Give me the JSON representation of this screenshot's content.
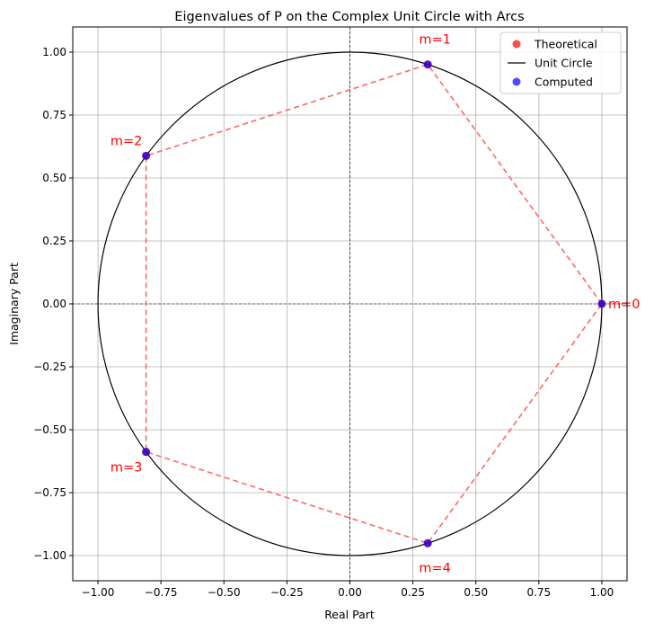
{
  "chart_data": {
    "type": "scatter",
    "title": "Eigenvalues of P on the Complex Unit Circle with Arcs",
    "xlabel": "Real Part",
    "ylabel": "Imaginary Part",
    "xlim": [
      -1.1,
      1.1
    ],
    "ylim": [
      -1.1,
      1.1
    ],
    "x_ticks": [
      -1.0,
      -0.75,
      -0.5,
      -0.25,
      0.0,
      0.25,
      0.5,
      0.75,
      1.0
    ],
    "y_ticks": [
      -1.0,
      -0.75,
      -0.5,
      -0.25,
      0.0,
      0.25,
      0.5,
      0.75,
      1.0
    ],
    "x_tick_labels": [
      "−1.00",
      "−0.75",
      "−0.50",
      "−0.25",
      "0.00",
      "0.25",
      "0.50",
      "0.75",
      "1.00"
    ],
    "y_tick_labels": [
      "−1.00",
      "−0.75",
      "−0.50",
      "−0.25",
      "0.00",
      "0.25",
      "0.50",
      "0.75",
      "1.00"
    ],
    "grid": true,
    "legend_position": "top-right",
    "series": [
      {
        "name": "Theoretical",
        "kind": "points",
        "color": "#ff0000",
        "points": [
          {
            "x": 1.0,
            "y": 0.0
          },
          {
            "x": 0.309,
            "y": 0.951
          },
          {
            "x": -0.809,
            "y": 0.588
          },
          {
            "x": -0.809,
            "y": -0.588
          },
          {
            "x": 0.309,
            "y": -0.951
          }
        ]
      },
      {
        "name": "Unit Circle",
        "kind": "circle",
        "color": "#000000",
        "center": [
          0,
          0
        ],
        "radius": 1
      },
      {
        "name": "Computed",
        "kind": "points",
        "color": "#0000ff",
        "points": [
          {
            "x": 1.0,
            "y": 0.0
          },
          {
            "x": 0.309,
            "y": 0.951
          },
          {
            "x": -0.809,
            "y": 0.588
          },
          {
            "x": -0.809,
            "y": -0.588
          },
          {
            "x": 0.309,
            "y": -0.951
          }
        ]
      }
    ],
    "arcs": {
      "color": "#ff6666",
      "style": "dashed",
      "path": [
        {
          "x": 1.0,
          "y": 0.0
        },
        {
          "x": 0.309,
          "y": 0.951
        },
        {
          "x": -0.809,
          "y": 0.588
        },
        {
          "x": -0.809,
          "y": -0.588
        },
        {
          "x": 0.309,
          "y": -0.951
        },
        {
          "x": 1.0,
          "y": 0.0
        }
      ]
    },
    "annotations": [
      {
        "text": "m=0",
        "x": 1.0,
        "y": 0.0,
        "anchor": "right"
      },
      {
        "text": "m=1",
        "x": 0.309,
        "y": 0.951,
        "anchor": "above"
      },
      {
        "text": "m=2",
        "x": -0.809,
        "y": 0.588,
        "anchor": "above-left"
      },
      {
        "text": "m=3",
        "x": -0.809,
        "y": -0.588,
        "anchor": "below-left"
      },
      {
        "text": "m=4",
        "x": 0.309,
        "y": -0.951,
        "anchor": "below"
      }
    ],
    "annotation_color": "#ff0000"
  }
}
